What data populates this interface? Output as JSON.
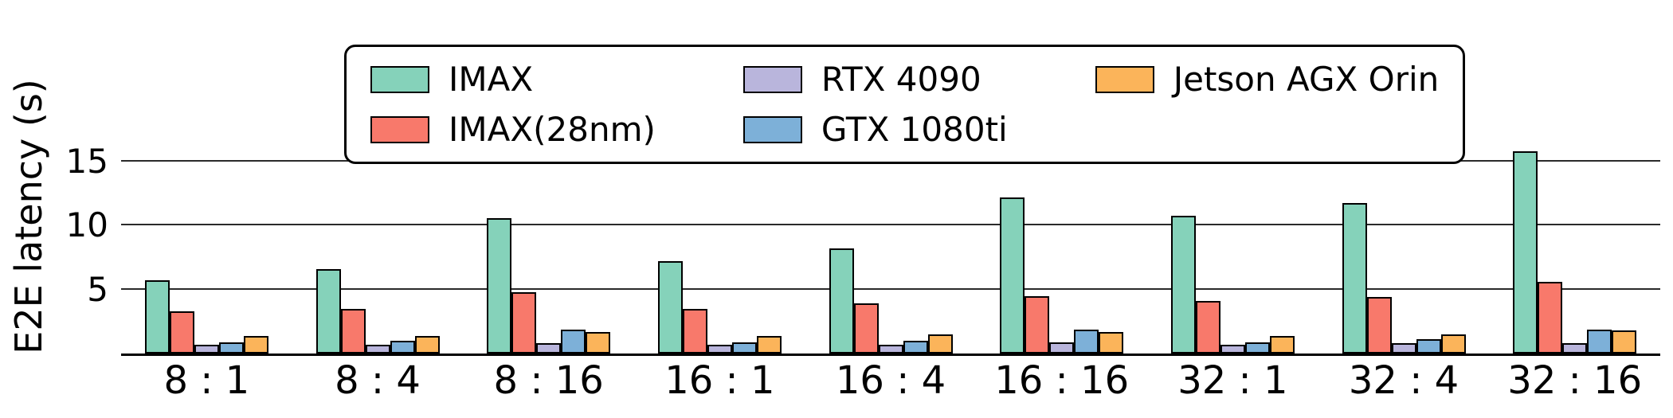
{
  "chart_data": {
    "type": "bar",
    "title": "",
    "xlabel": "",
    "ylabel": "E2E latency (s)",
    "categories": [
      "8 : 1",
      "8 : 4",
      "8 : 16",
      "16 : 1",
      "16 : 4",
      "16 : 16",
      "32 : 1",
      "32 : 4",
      "32 : 16"
    ],
    "series": [
      {
        "name": "IMAX",
        "color": "#85d2ba",
        "values": [
          5.7,
          6.6,
          10.6,
          7.2,
          8.2,
          12.2,
          10.8,
          11.8,
          15.8
        ]
      },
      {
        "name": "IMAX(28nm)",
        "color": "#f8796b",
        "values": [
          3.3,
          3.5,
          4.8,
          3.5,
          3.9,
          4.5,
          4.1,
          4.4,
          5.6
        ]
      },
      {
        "name": "RTX 4090",
        "color": "#b9b5dc",
        "values": [
          0.7,
          0.7,
          0.8,
          0.7,
          0.7,
          0.9,
          0.7,
          0.8,
          0.8
        ]
      },
      {
        "name": "GTX 1080ti",
        "color": "#7db0d8",
        "values": [
          0.9,
          1.0,
          1.9,
          0.9,
          1.0,
          1.9,
          0.9,
          1.1,
          1.9
        ]
      },
      {
        "name": "Jetson AGX Orin",
        "color": "#fbb45a",
        "values": [
          1.4,
          1.4,
          1.7,
          1.4,
          1.5,
          1.7,
          1.4,
          1.5,
          1.8
        ]
      }
    ],
    "yticks": [
      5,
      10,
      15
    ],
    "ylim": [
      0,
      17.5
    ],
    "grid": true,
    "legend_position": "top",
    "bar_edge_color": "#000000",
    "gridline_color": "#2a2a2a"
  }
}
